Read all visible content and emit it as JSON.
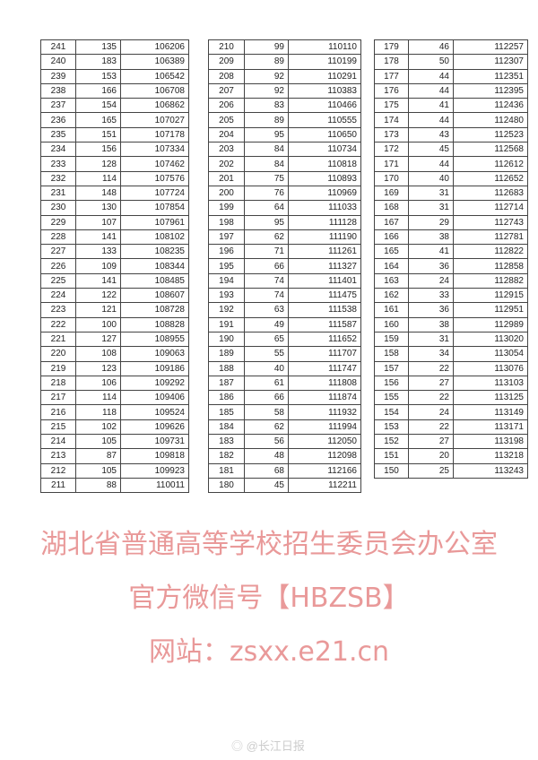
{
  "tables": [
    {
      "rows": [
        [
          "241",
          "135",
          "106206"
        ],
        [
          "240",
          "183",
          "106389"
        ],
        [
          "239",
          "153",
          "106542"
        ],
        [
          "238",
          "166",
          "106708"
        ],
        [
          "237",
          "154",
          "106862"
        ],
        [
          "236",
          "165",
          "107027"
        ],
        [
          "235",
          "151",
          "107178"
        ],
        [
          "234",
          "156",
          "107334"
        ],
        [
          "233",
          "128",
          "107462"
        ],
        [
          "232",
          "114",
          "107576"
        ],
        [
          "231",
          "148",
          "107724"
        ],
        [
          "230",
          "130",
          "107854"
        ],
        [
          "229",
          "107",
          "107961"
        ],
        [
          "228",
          "141",
          "108102"
        ],
        [
          "227",
          "133",
          "108235"
        ],
        [
          "226",
          "109",
          "108344"
        ],
        [
          "225",
          "141",
          "108485"
        ],
        [
          "224",
          "122",
          "108607"
        ],
        [
          "223",
          "121",
          "108728"
        ],
        [
          "222",
          "100",
          "108828"
        ],
        [
          "221",
          "127",
          "108955"
        ],
        [
          "220",
          "108",
          "109063"
        ],
        [
          "219",
          "123",
          "109186"
        ],
        [
          "218",
          "106",
          "109292"
        ],
        [
          "217",
          "114",
          "109406"
        ],
        [
          "216",
          "118",
          "109524"
        ],
        [
          "215",
          "102",
          "109626"
        ],
        [
          "214",
          "105",
          "109731"
        ],
        [
          "213",
          "87",
          "109818"
        ],
        [
          "212",
          "105",
          "109923"
        ],
        [
          "211",
          "88",
          "110011"
        ]
      ]
    },
    {
      "rows": [
        [
          "210",
          "99",
          "110110"
        ],
        [
          "209",
          "89",
          "110199"
        ],
        [
          "208",
          "92",
          "110291"
        ],
        [
          "207",
          "92",
          "110383"
        ],
        [
          "206",
          "83",
          "110466"
        ],
        [
          "205",
          "89",
          "110555"
        ],
        [
          "204",
          "95",
          "110650"
        ],
        [
          "203",
          "84",
          "110734"
        ],
        [
          "202",
          "84",
          "110818"
        ],
        [
          "201",
          "75",
          "110893"
        ],
        [
          "200",
          "76",
          "110969"
        ],
        [
          "199",
          "64",
          "111033"
        ],
        [
          "198",
          "95",
          "111128"
        ],
        [
          "197",
          "62",
          "111190"
        ],
        [
          "196",
          "71",
          "111261"
        ],
        [
          "195",
          "66",
          "111327"
        ],
        [
          "194",
          "74",
          "111401"
        ],
        [
          "193",
          "74",
          "111475"
        ],
        [
          "192",
          "63",
          "111538"
        ],
        [
          "191",
          "49",
          "111587"
        ],
        [
          "190",
          "65",
          "111652"
        ],
        [
          "189",
          "55",
          "111707"
        ],
        [
          "188",
          "40",
          "111747"
        ],
        [
          "187",
          "61",
          "111808"
        ],
        [
          "186",
          "66",
          "111874"
        ],
        [
          "185",
          "58",
          "111932"
        ],
        [
          "184",
          "62",
          "111994"
        ],
        [
          "183",
          "56",
          "112050"
        ],
        [
          "182",
          "48",
          "112098"
        ],
        [
          "181",
          "68",
          "112166"
        ],
        [
          "180",
          "45",
          "112211"
        ]
      ]
    },
    {
      "rows": [
        [
          "179",
          "46",
          "112257"
        ],
        [
          "178",
          "50",
          "112307"
        ],
        [
          "177",
          "44",
          "112351"
        ],
        [
          "176",
          "44",
          "112395"
        ],
        [
          "175",
          "41",
          "112436"
        ],
        [
          "174",
          "44",
          "112480"
        ],
        [
          "173",
          "43",
          "112523"
        ],
        [
          "172",
          "45",
          "112568"
        ],
        [
          "171",
          "44",
          "112612"
        ],
        [
          "170",
          "40",
          "112652"
        ],
        [
          "169",
          "31",
          "112683"
        ],
        [
          "168",
          "31",
          "112714"
        ],
        [
          "167",
          "29",
          "112743"
        ],
        [
          "166",
          "38",
          "112781"
        ],
        [
          "165",
          "41",
          "112822"
        ],
        [
          "164",
          "36",
          "112858"
        ],
        [
          "163",
          "24",
          "112882"
        ],
        [
          "162",
          "33",
          "112915"
        ],
        [
          "161",
          "36",
          "112951"
        ],
        [
          "160",
          "38",
          "112989"
        ],
        [
          "159",
          "31",
          "113020"
        ],
        [
          "158",
          "34",
          "113054"
        ],
        [
          "157",
          "22",
          "113076"
        ],
        [
          "156",
          "27",
          "113103"
        ],
        [
          "155",
          "22",
          "113125"
        ],
        [
          "154",
          "24",
          "113149"
        ],
        [
          "153",
          "22",
          "113171"
        ],
        [
          "152",
          "27",
          "113198"
        ],
        [
          "151",
          "20",
          "113218"
        ],
        [
          "150",
          "25",
          "113243"
        ]
      ]
    }
  ],
  "watermark": {
    "line1": "湖北省普通高等学校招生委员会办公室",
    "line2": "官方微信号【HBZSB】",
    "line3": "网站：zsxx.e21.cn",
    "color": "#d74646"
  },
  "credit": "@长江日报"
}
